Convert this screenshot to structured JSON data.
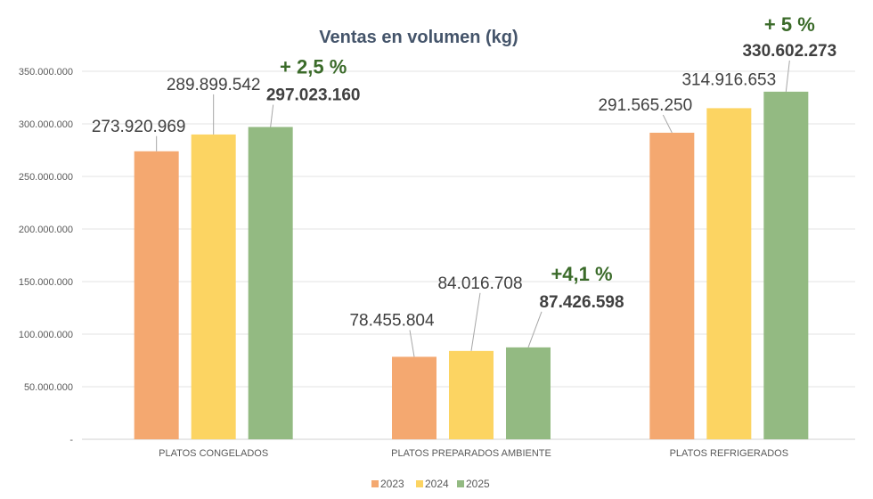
{
  "chart_data": {
    "type": "bar",
    "title": "Ventas en volumen (kg)",
    "categories": [
      "PLATOS CONGELADOS",
      "PLATOS PREPARADOS AMBIENTE",
      "PLATOS REFRIGERADOS"
    ],
    "series": [
      {
        "name": "2023",
        "color": "#f4a870",
        "values": [
          273920969,
          78455804,
          291565250
        ],
        "labels": [
          "273.920.969",
          "78.455.804",
          "291.565.250"
        ]
      },
      {
        "name": "2024",
        "color": "#fcd462",
        "values": [
          289899542,
          84016708,
          314916653
        ],
        "labels": [
          "289.899.542",
          "84.016.708",
          "314.916.653"
        ]
      },
      {
        "name": "2025",
        "color": "#93ba82",
        "values": [
          297023160,
          87426598,
          330602273
        ],
        "labels": [
          "297.023.160",
          "87.426.598",
          "330.602.273"
        ]
      }
    ],
    "annotations": [
      "+ 2,5 %",
      "+4,1 %",
      "+ 5 %"
    ],
    "yticks": [
      "-",
      "50.000.000",
      "100.000.000",
      "150.000.000",
      "200.000.000",
      "250.000.000",
      "300.000.000",
      "350.000.000"
    ],
    "ylim": [
      0,
      350000000
    ],
    "grid": true,
    "legend": "bottom"
  }
}
